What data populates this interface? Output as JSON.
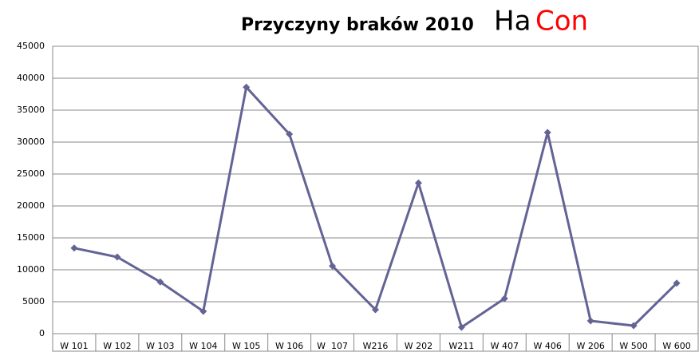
{
  "chart_data": {
    "type": "line",
    "title": "Przyczyny braków 2010",
    "logo": [
      "Ha",
      "Con"
    ],
    "categories": [
      "W 101",
      "W 102",
      "W 103",
      "W 104",
      "W 105",
      "W 106",
      "W  107",
      "W216",
      "W 202",
      "W211",
      "W 407",
      "W 406",
      "W 206",
      "W 500",
      "W 600"
    ],
    "values": [
      13400,
      12000,
      8100,
      3500,
      38600,
      31250,
      10600,
      3750,
      23600,
      1000,
      5500,
      31500,
      2000,
      1250,
      7900
    ],
    "color": "#636396",
    "ylim": [
      0,
      45000
    ],
    "yticks": [
      0,
      5000,
      10000,
      15000,
      20000,
      25000,
      30000,
      35000,
      40000,
      45000
    ],
    "grid": true
  }
}
